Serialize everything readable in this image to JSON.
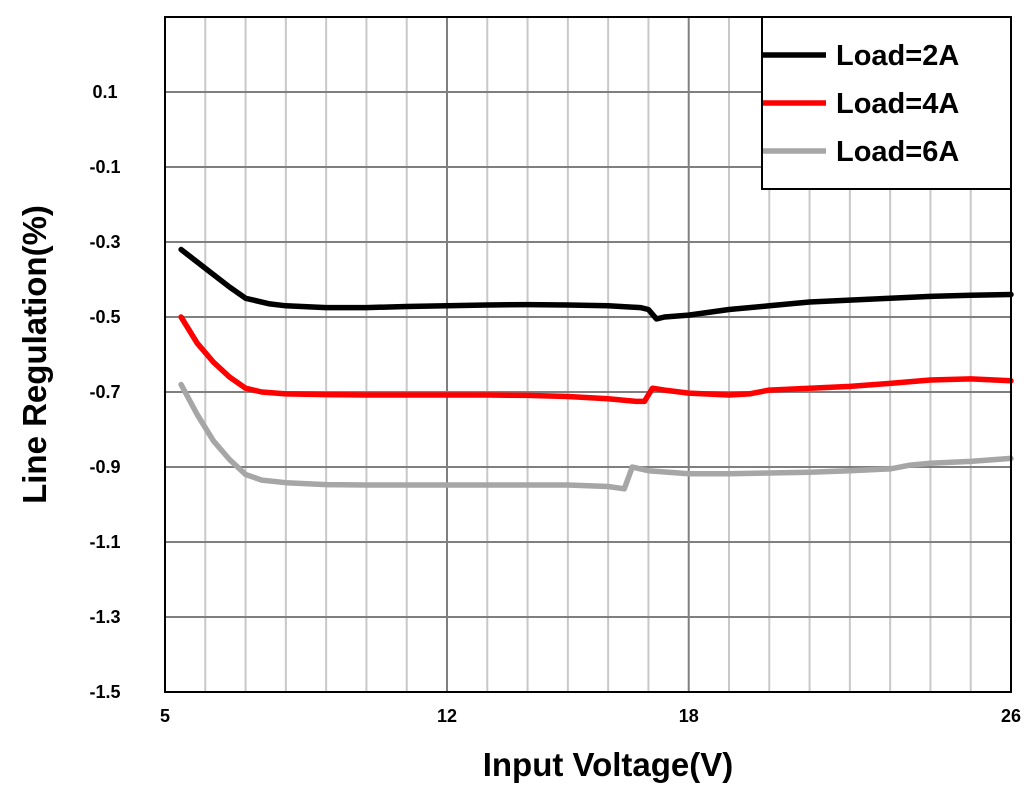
{
  "chart_data": {
    "type": "line",
    "title": "",
    "xlabel": "Input Voltage(V)",
    "ylabel": "Line Regulation(%)",
    "xlim": [
      5,
      26
    ],
    "ylim": [
      -1.5,
      0.3
    ],
    "x_ticks": [
      5,
      12,
      18,
      26
    ],
    "y_ticks": [
      0.1,
      -0.1,
      -0.3,
      -0.5,
      -0.7,
      -0.9,
      -1.1,
      -1.3,
      -1.5
    ],
    "x_minor_step": 1,
    "y_grid_step": 0.2,
    "grid": true,
    "legend_position": "top-right",
    "series": [
      {
        "name": "Load=2A",
        "color": "#000000",
        "x": [
          5.4,
          6.0,
          6.6,
          7.0,
          7.6,
          8.0,
          9.0,
          10.0,
          11.0,
          12.0,
          13.0,
          14.0,
          15.0,
          16.0,
          16.8,
          17.0,
          17.2,
          17.4,
          18.0,
          19.0,
          20.0,
          21.0,
          22.0,
          23.0,
          24.0,
          25.0,
          26.0
        ],
        "y": [
          -0.32,
          -0.37,
          -0.42,
          -0.45,
          -0.465,
          -0.47,
          -0.475,
          -0.475,
          -0.472,
          -0.47,
          -0.468,
          -0.467,
          -0.468,
          -0.47,
          -0.475,
          -0.48,
          -0.505,
          -0.5,
          -0.495,
          -0.48,
          -0.47,
          -0.46,
          -0.455,
          -0.45,
          -0.445,
          -0.442,
          -0.44
        ]
      },
      {
        "name": "Load=4A",
        "color": "#ff0000",
        "x": [
          5.4,
          5.8,
          6.2,
          6.6,
          7.0,
          7.4,
          8.0,
          9.0,
          10.0,
          11.0,
          12.0,
          13.0,
          14.0,
          15.0,
          16.0,
          16.7,
          16.9,
          17.1,
          17.4,
          18.0,
          19.0,
          19.5,
          20.0,
          21.0,
          22.0,
          23.0,
          24.0,
          25.0,
          26.0
        ],
        "y": [
          -0.5,
          -0.57,
          -0.62,
          -0.66,
          -0.69,
          -0.7,
          -0.705,
          -0.707,
          -0.708,
          -0.708,
          -0.708,
          -0.708,
          -0.709,
          -0.712,
          -0.718,
          -0.725,
          -0.725,
          -0.69,
          -0.695,
          -0.703,
          -0.708,
          -0.705,
          -0.695,
          -0.69,
          -0.685,
          -0.677,
          -0.668,
          -0.665,
          -0.67
        ]
      },
      {
        "name": "Load=6A",
        "color": "#a6a6a6",
        "x": [
          5.4,
          5.8,
          6.2,
          6.6,
          7.0,
          7.4,
          8.0,
          9.0,
          10.0,
          11.0,
          12.0,
          13.0,
          14.0,
          15.0,
          16.0,
          16.4,
          16.6,
          16.8,
          17.0,
          18.0,
          19.0,
          20.0,
          21.0,
          22.0,
          23.0,
          23.5,
          24.0,
          25.0,
          26.0
        ],
        "y": [
          -0.68,
          -0.76,
          -0.83,
          -0.88,
          -0.92,
          -0.935,
          -0.942,
          -0.947,
          -0.948,
          -0.948,
          -0.948,
          -0.948,
          -0.948,
          -0.948,
          -0.952,
          -0.958,
          -0.9,
          -0.905,
          -0.91,
          -0.918,
          -0.918,
          -0.916,
          -0.914,
          -0.91,
          -0.905,
          -0.895,
          -0.89,
          -0.885,
          -0.877
        ]
      }
    ]
  }
}
